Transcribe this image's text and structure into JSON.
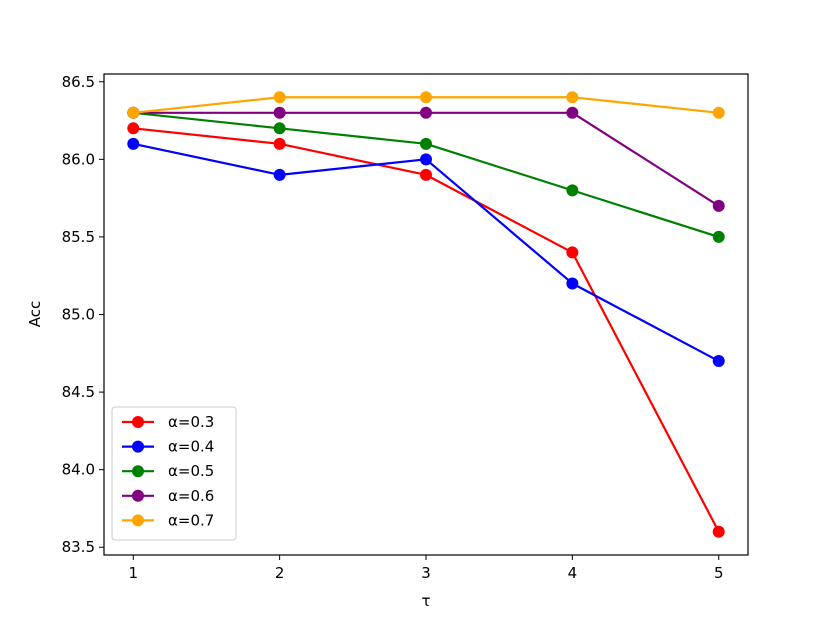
{
  "chart_data": {
    "type": "line",
    "title": "",
    "xlabel": "τ",
    "ylabel": "Acc",
    "x": [
      1,
      2,
      3,
      4,
      5
    ],
    "xticks": [
      "1",
      "2",
      "3",
      "4",
      "5"
    ],
    "yticks": [
      "83.5",
      "84.0",
      "84.5",
      "85.0",
      "85.5",
      "86.0",
      "86.5"
    ],
    "xlim": [
      0.8,
      5.2
    ],
    "ylim": [
      83.45,
      86.55
    ],
    "grid": false,
    "legend_position": "lower-left",
    "series": [
      {
        "name": "α=0.3",
        "color": "#ff0000",
        "values": [
          86.2,
          86.1,
          85.9,
          85.4,
          83.6
        ]
      },
      {
        "name": "α=0.4",
        "color": "#0000ff",
        "values": [
          86.1,
          85.9,
          86.0,
          85.2,
          84.7
        ]
      },
      {
        "name": "α=0.5",
        "color": "#008000",
        "values": [
          86.3,
          86.2,
          86.1,
          85.8,
          85.5
        ]
      },
      {
        "name": "α=0.6",
        "color": "#800080",
        "values": [
          86.3,
          86.3,
          86.3,
          86.3,
          85.7
        ]
      },
      {
        "name": "α=0.7",
        "color": "#ffa500",
        "values": [
          86.3,
          86.4,
          86.4,
          86.4,
          86.3
        ]
      }
    ]
  }
}
